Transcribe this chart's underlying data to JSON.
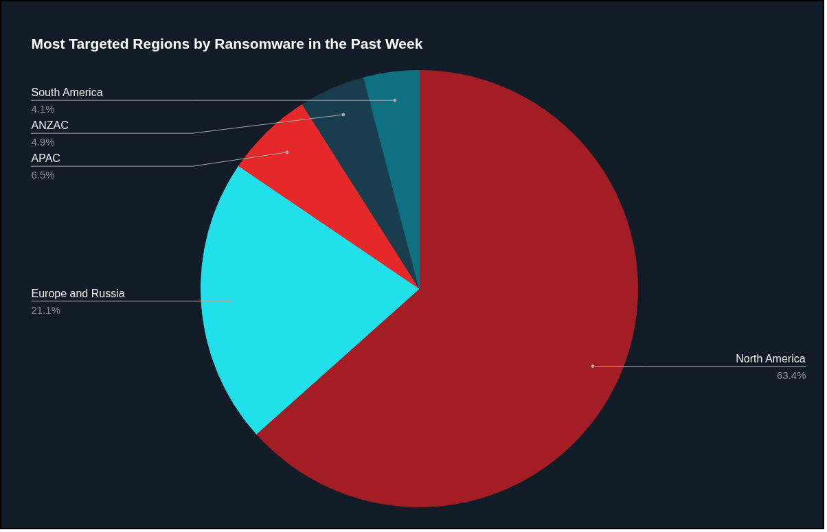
{
  "chart_data": {
    "type": "pie",
    "title": "Most Targeted Regions by Ransomware in the Past Week",
    "categories": [
      "North America",
      "Europe and Russia",
      "APAC",
      "ANZAC",
      "South America"
    ],
    "values": [
      63.4,
      21.1,
      6.5,
      4.9,
      4.1
    ],
    "colors": [
      "#a21d24",
      "#22e0ea",
      "#e5292b",
      "#193d4c",
      "#0e7080"
    ],
    "value_labels": [
      "63.4%",
      "21.1%",
      "6.5%",
      "4.9%",
      "4.1%"
    ]
  }
}
